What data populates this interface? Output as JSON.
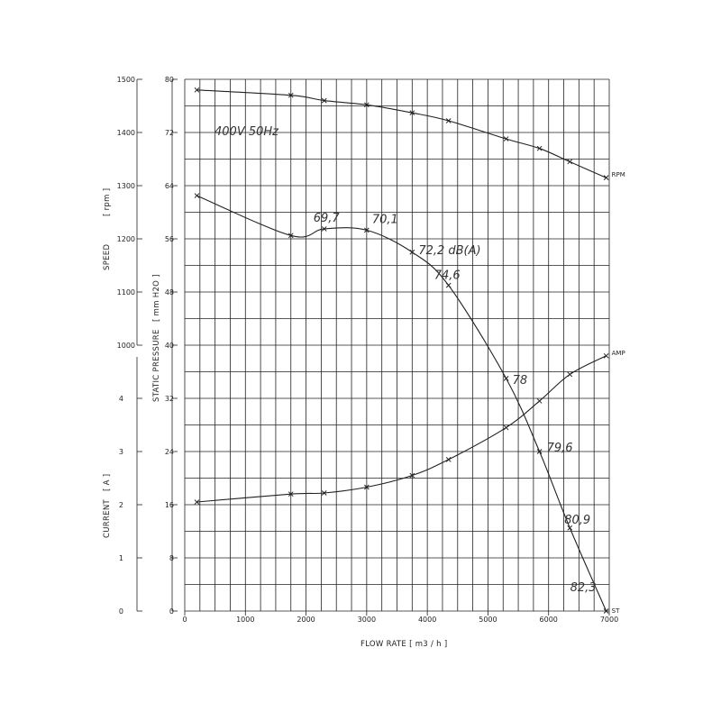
{
  "chart_data": {
    "type": "line",
    "annotation_supply": "400V 50Hz",
    "xlabel": "FLOW RATE [ m3 / h ]",
    "xlim": [
      0,
      7000
    ],
    "x_ticks": [
      "0",
      "1000",
      "2000",
      "3000",
      "4000",
      "5000",
      "6000",
      "7000"
    ],
    "axes": {
      "pressure": {
        "label": "STATIC PRESSURE",
        "unit": "[ mm H2O ]",
        "lim": [
          0,
          80
        ],
        "ticks": [
          "0",
          "8",
          "16",
          "24",
          "32",
          "40",
          "48",
          "56",
          "64",
          "72",
          "80"
        ]
      },
      "speed": {
        "label": "SPEED",
        "unit": "[ rpm ]",
        "lim": [
          1000,
          1500
        ],
        "ticks": [
          "1000",
          "1100",
          "1200",
          "1300",
          "1400",
          "1500"
        ]
      },
      "current": {
        "label": "CURRENT",
        "unit": "[ A ]",
        "lim": [
          0,
          5
        ],
        "ticks": [
          "0",
          "1",
          "2",
          "3",
          "4"
        ]
      }
    },
    "series": [
      {
        "name": "RPM",
        "axis": "speed",
        "x": [
          200,
          1750,
          2300,
          3000,
          3750,
          4350,
          5300,
          5850,
          6350,
          6950
        ],
        "y": [
          1480,
          1470,
          1460,
          1452,
          1437,
          1422,
          1388,
          1370,
          1345,
          1315
        ]
      },
      {
        "name": "AMP",
        "axis": "current",
        "x": [
          200,
          1750,
          2300,
          3000,
          3750,
          4350,
          5300,
          5850,
          6350,
          6950
        ],
        "y": [
          2.05,
          2.2,
          2.22,
          2.33,
          2.55,
          2.85,
          3.45,
          3.95,
          4.45,
          4.8
        ]
      },
      {
        "name": "ST",
        "axis": "pressure",
        "x": [
          200,
          1750,
          2300,
          3000,
          3750,
          4350,
          5300,
          5850,
          6350,
          6950
        ],
        "y": [
          62.5,
          56.5,
          57.5,
          57.3,
          54,
          49,
          35,
          24,
          12.5,
          0
        ]
      }
    ],
    "noise_labels": [
      {
        "text": "69,7",
        "x": 2300,
        "y": 57.5
      },
      {
        "text": "70,1",
        "x": 3000,
        "y": 57.3
      },
      {
        "text": "72,2 dB(A)",
        "x": 3750,
        "y": 54
      },
      {
        "text": "74,6",
        "x": 4350,
        "y": 49
      },
      {
        "text": "78",
        "x": 5300,
        "y": 35
      },
      {
        "text": "79,6",
        "x": 5850,
        "y": 24
      },
      {
        "text": "80,9",
        "x": 6350,
        "y": 12.5
      },
      {
        "text": "82,3",
        "x": 6950,
        "y": 0
      }
    ],
    "grid": true
  }
}
